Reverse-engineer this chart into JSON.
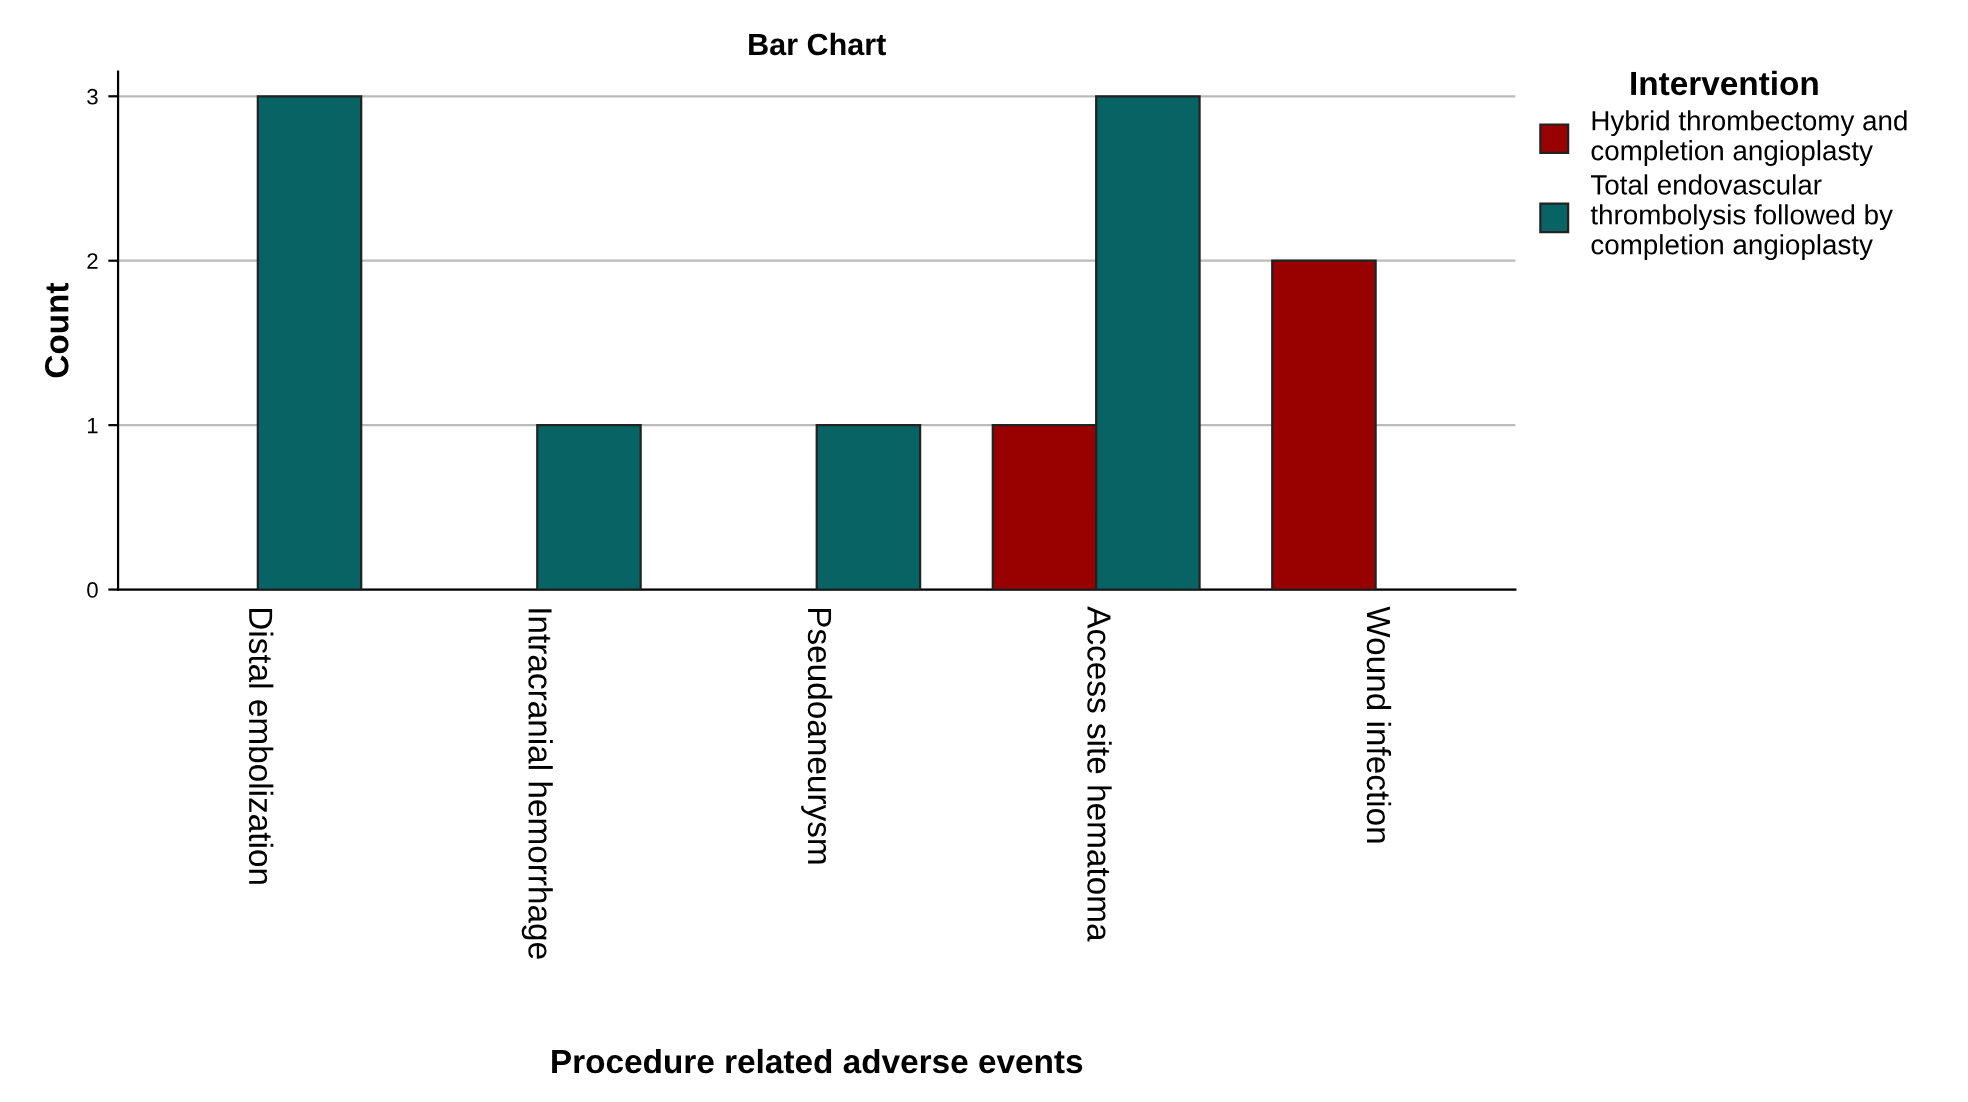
{
  "chart_data": {
    "type": "bar",
    "title": "Bar Chart",
    "xlabel": "Procedure related adverse events",
    "ylabel": "Count",
    "legend_title": "Intervention",
    "categories": [
      "Distal embolization",
      "Intracranial hemorrhage",
      "Pseudoaneurysm",
      "Access site hematoma",
      "Wound infection"
    ],
    "series": [
      {
        "name": "Hybrid thrombectomy and\ncompletion angioplasty",
        "color": "#990000",
        "values": [
          null,
          null,
          null,
          1,
          2
        ]
      },
      {
        "name": "Total endovascular\nthrombolysis followed by\ncompletion angioplasty",
        "color": "#086464",
        "values": [
          3,
          1,
          1,
          3,
          null
        ]
      }
    ],
    "ylim": [
      0,
      3.15
    ],
    "yticks": [
      0,
      1,
      2,
      3
    ],
    "grid": "y",
    "legend": "top right"
  }
}
